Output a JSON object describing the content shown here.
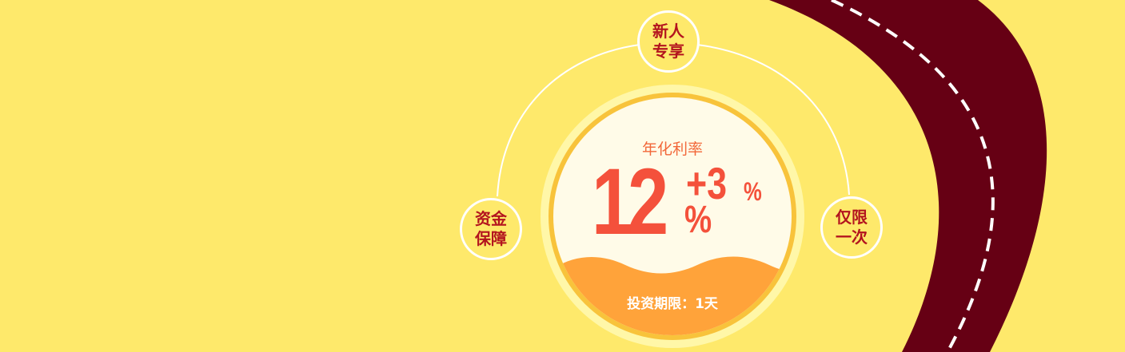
{
  "banner": {
    "badges": {
      "top": [
        "新人",
        "专享"
      ],
      "left": [
        "资金",
        "保障"
      ],
      "right": [
        "仅限",
        "一次"
      ]
    },
    "rate": {
      "label": "年化利率",
      "base": "12",
      "base_unit": "%",
      "bonus": "+3",
      "bonus_unit": "%"
    },
    "term": "投资期限：1天"
  },
  "colors": {
    "background": "#fee96b",
    "road": "#660014",
    "badge_text": "#b3141e",
    "rate": "#f4513b",
    "wave": "#ffa33a"
  }
}
